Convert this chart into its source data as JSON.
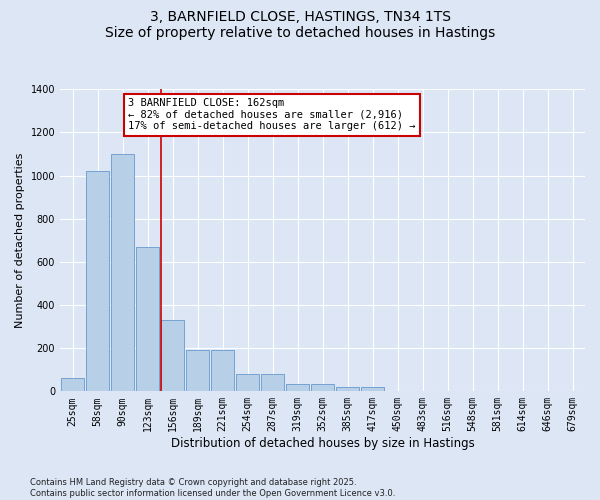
{
  "title": "3, BARNFIELD CLOSE, HASTINGS, TN34 1TS",
  "subtitle": "Size of property relative to detached houses in Hastings",
  "xlabel": "Distribution of detached houses by size in Hastings",
  "ylabel": "Number of detached properties",
  "categories": [
    "25sqm",
    "58sqm",
    "90sqm",
    "123sqm",
    "156sqm",
    "189sqm",
    "221sqm",
    "254sqm",
    "287sqm",
    "319sqm",
    "352sqm",
    "385sqm",
    "417sqm",
    "450sqm",
    "483sqm",
    "516sqm",
    "548sqm",
    "581sqm",
    "614sqm",
    "646sqm",
    "679sqm"
  ],
  "values": [
    60,
    1020,
    1100,
    670,
    330,
    190,
    190,
    80,
    80,
    35,
    35,
    20,
    20,
    0,
    0,
    0,
    0,
    0,
    0,
    0,
    0
  ],
  "bar_color": "#b8cfe8",
  "bar_edge_color": "#6699cc",
  "annotation_text": "3 BARNFIELD CLOSE: 162sqm\n← 82% of detached houses are smaller (2,916)\n17% of semi-detached houses are larger (612) →",
  "annotation_box_color": "#ffffff",
  "annotation_box_edge": "#cc0000",
  "vline_color": "#cc0000",
  "vline_pos": 3.52,
  "ylim": [
    0,
    1400
  ],
  "yticks": [
    0,
    200,
    400,
    600,
    800,
    1000,
    1200,
    1400
  ],
  "background_color": "#dce6f5",
  "grid_color": "#ffffff",
  "footer_line1": "Contains HM Land Registry data © Crown copyright and database right 2025.",
  "footer_line2": "Contains public sector information licensed under the Open Government Licence v3.0.",
  "title_fontsize": 10,
  "tick_fontsize": 7,
  "label_fontsize": 8.5,
  "annotation_fontsize": 7.5,
  "ylabel_fontsize": 8
}
